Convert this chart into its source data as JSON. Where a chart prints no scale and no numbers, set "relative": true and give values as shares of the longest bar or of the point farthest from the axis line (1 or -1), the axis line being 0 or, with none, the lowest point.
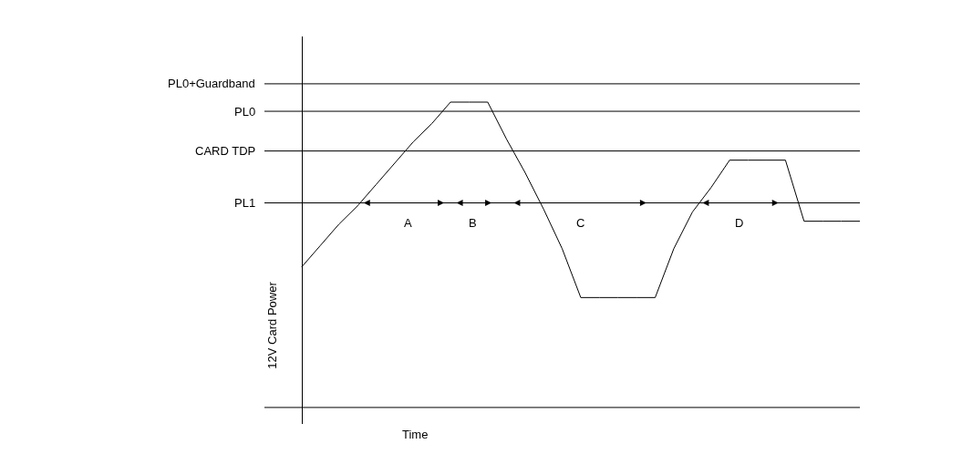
{
  "chart_data": {
    "type": "line",
    "relative": true,
    "xlabel": "Time",
    "ylabel": "12V Card Power",
    "color": "#000000",
    "marker": "none",
    "grid": false,
    "categories": [
      null,
      null,
      null,
      null,
      null,
      null,
      null,
      null,
      null,
      null,
      null,
      null,
      null,
      null,
      null,
      null,
      null,
      null,
      null,
      null,
      null,
      null,
      null,
      null,
      null,
      null,
      null,
      null,
      null,
      null,
      null
    ],
    "values": [
      0.46,
      0.53,
      0.6,
      0.66,
      0.73,
      0.8,
      0.87,
      0.93,
      1,
      1,
      1,
      0.88,
      0.77,
      0.65,
      0.52,
      0.36,
      0.36,
      0.36,
      0.36,
      0.36,
      0.52,
      0.64,
      0.72,
      0.81,
      0.81,
      0.81,
      0.81,
      0.61,
      0.61,
      0.61,
      0.61
    ],
    "ref_lines": [
      {
        "axis": "y",
        "value": 1.06,
        "label": "PL0+Guardband"
      },
      {
        "axis": "y",
        "value": 0.97,
        "label": "PL0"
      },
      {
        "axis": "y",
        "value": 0.84,
        "label": "CARD TDP"
      },
      {
        "axis": "y",
        "value": 0.67,
        "label": "PL1"
      }
    ],
    "annotations": [
      "A",
      "B",
      "C",
      "D"
    ]
  }
}
